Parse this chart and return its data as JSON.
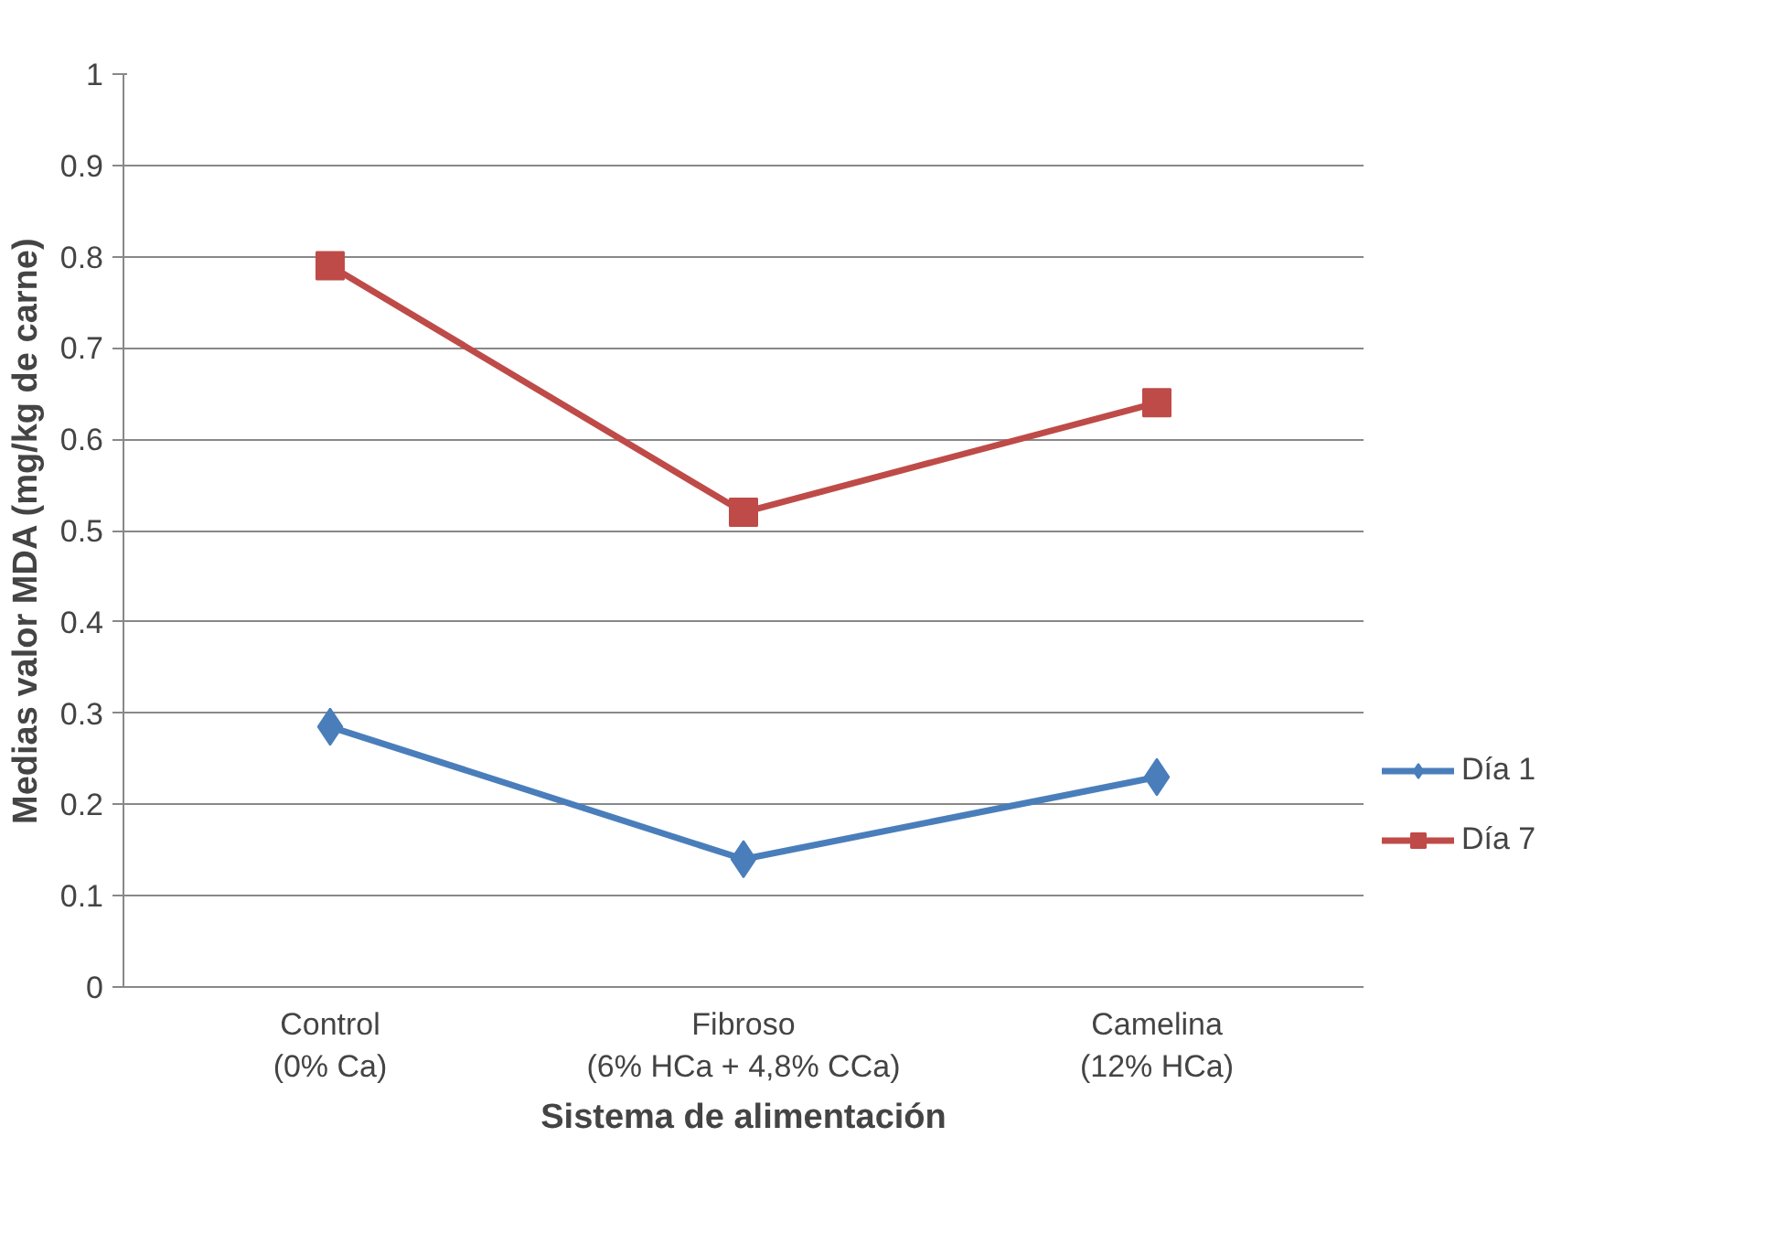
{
  "chart_data": {
    "type": "line",
    "xlabel": "Sistema de alimentación",
    "ylabel": "Medias valor MDA (mg/kg de carne)",
    "categories": [
      "Control\n(0% Ca)",
      "Fibroso\n(6% HCa + 4,8% CCa)",
      "Camelina\n(12% HCa)"
    ],
    "series": [
      {
        "name": "Día 1",
        "color": "#4a7ebb",
        "marker": "diamond",
        "values": [
          0.285,
          0.14,
          0.23
        ]
      },
      {
        "name": "Día 7",
        "color": "#be4b48",
        "marker": "square",
        "values": [
          0.79,
          0.52,
          0.64
        ]
      }
    ],
    "ylim": [
      0,
      1
    ],
    "yticks": [
      0,
      0.1,
      0.2,
      0.3,
      0.4,
      0.5,
      0.6,
      0.7,
      0.8,
      0.9,
      1
    ],
    "grid": "y",
    "legend": "right"
  }
}
